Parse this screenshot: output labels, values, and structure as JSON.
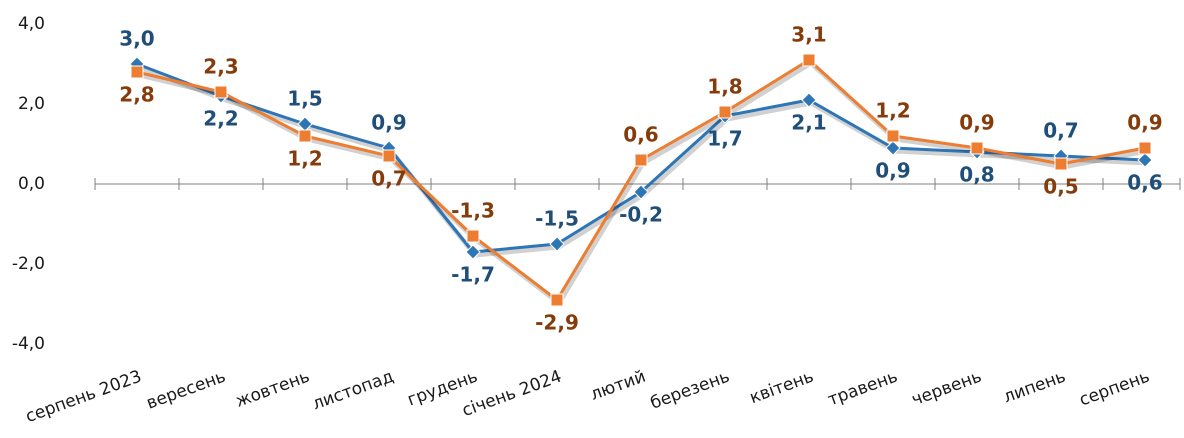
{
  "chart_data": {
    "type": "line",
    "categories": [
      "серпень 2023",
      "вересень",
      "жовтень",
      "листопад",
      "грудень",
      "січень 2024",
      "лютий",
      "березень",
      "квітень",
      "травень",
      "червень",
      "липень",
      "серпень"
    ],
    "series": [
      {
        "color": "#2e75b6",
        "label_color": "#1f4e79",
        "marker": "diamond",
        "values": [
          3.0,
          2.2,
          1.5,
          0.9,
          -1.7,
          -1.5,
          -0.2,
          1.7,
          2.1,
          0.9,
          0.8,
          0.7,
          0.6
        ],
        "value_labels": [
          "3,0",
          "2,2",
          "1,5",
          "0,9",
          "-1,7",
          "-1,5",
          "-0,2",
          "1,7",
          "2,1",
          "0,9",
          "0,8",
          "0,7",
          "0,6"
        ]
      },
      {
        "color": "#ed7d31",
        "label_color": "#843c0c",
        "marker": "square",
        "values": [
          2.8,
          2.3,
          1.2,
          0.7,
          -1.3,
          -2.9,
          0.6,
          1.8,
          3.1,
          1.2,
          0.9,
          0.5,
          0.9
        ],
        "value_labels": [
          "2,8",
          "2,3",
          "1,2",
          "0,7",
          "-1,3",
          "-2,9",
          "0,6",
          "1,8",
          "3,1",
          "1,2",
          "0,9",
          "0,5",
          "0,9"
        ]
      }
    ],
    "ylim": [
      -4,
      4
    ],
    "yticks": [
      {
        "value": -4,
        "label": "-4,0"
      },
      {
        "value": -2,
        "label": "-2,0"
      },
      {
        "value": 0,
        "label": "0,0"
      },
      {
        "value": 2,
        "label": "2,0"
      },
      {
        "value": 4,
        "label": "4,0"
      }
    ],
    "grid": false
  }
}
